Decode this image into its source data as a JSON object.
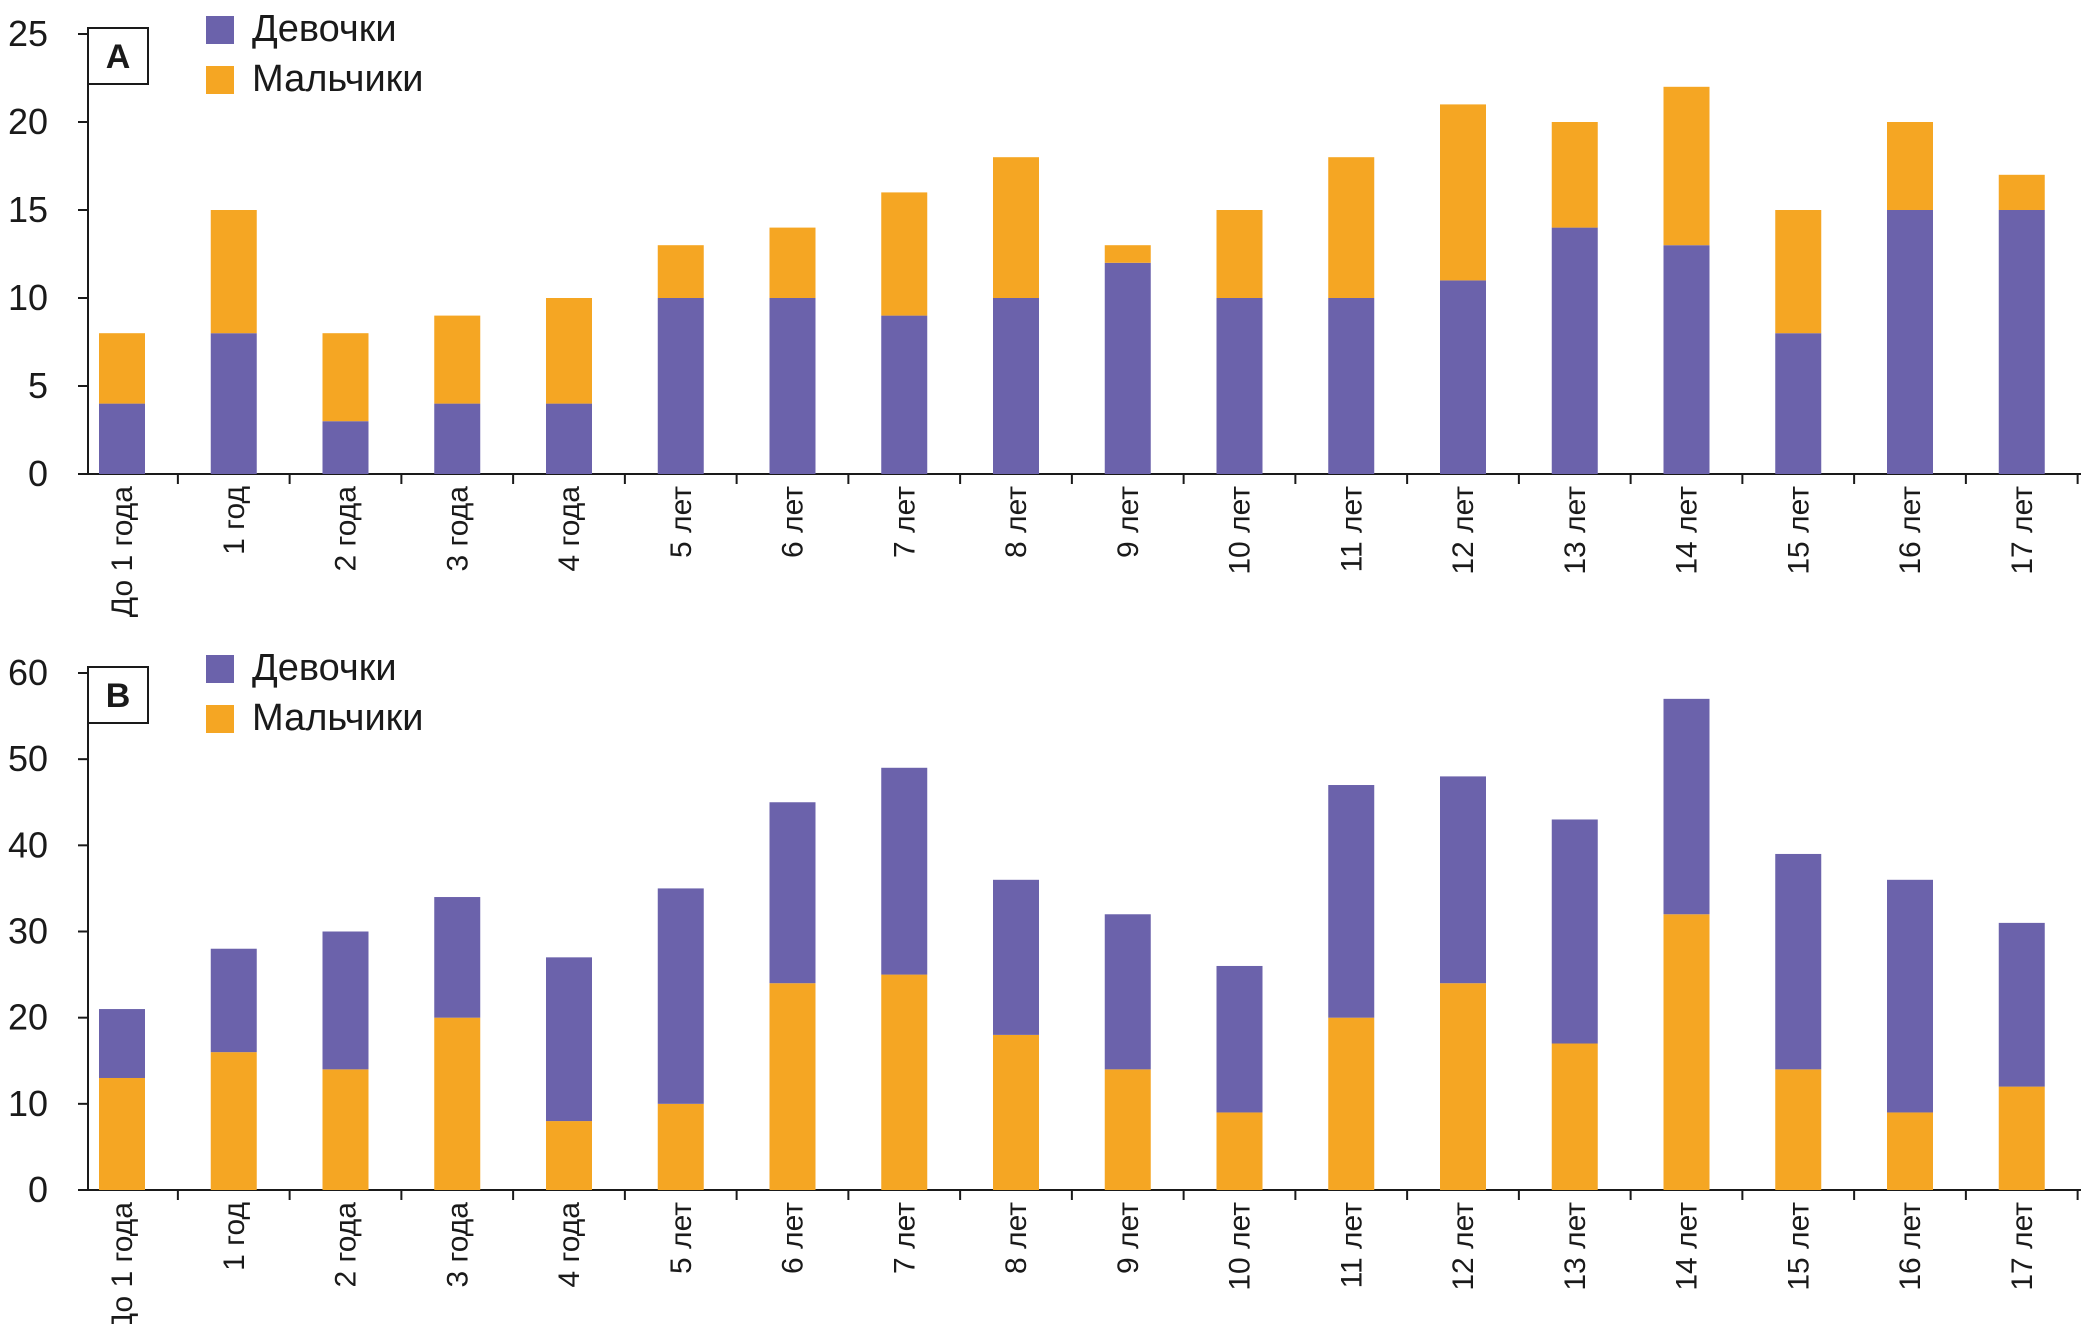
{
  "colors": {
    "girls": "#6b62ab",
    "boys": "#f5a623",
    "axis": "#1a1a1a"
  },
  "chart_data": [
    {
      "type": "bar",
      "stacked": true,
      "panel_label": "A",
      "categories": [
        "До 1 года",
        "1 год",
        "2 года",
        "3 года",
        "4 года",
        "5 лет",
        "6 лет",
        "7 лет",
        "8 лет",
        "9 лет",
        "10 лет",
        "11 лет",
        "12 лет",
        "13 лет",
        "14 лет",
        "15 лет",
        "16 лет",
        "17 лет"
      ],
      "series": [
        {
          "name": "Девочки",
          "color": "#6b62ab",
          "values": [
            4,
            8,
            3,
            4,
            4,
            10,
            10,
            9,
            10,
            12,
            10,
            10,
            11,
            14,
            13,
            8,
            15,
            15
          ]
        },
        {
          "name": "Мальчики",
          "color": "#f5a623",
          "values": [
            4,
            7,
            5,
            5,
            6,
            3,
            4,
            7,
            8,
            1,
            5,
            8,
            10,
            6,
            9,
            7,
            5,
            2
          ]
        }
      ],
      "stack_order": [
        "Девочки",
        "Мальчики"
      ],
      "legend": [
        "Девочки",
        "Мальчики"
      ],
      "yticks": [
        0,
        5,
        10,
        15,
        20,
        25
      ],
      "ylim": [
        0,
        25
      ],
      "grid": false,
      "legend_position": "top-left"
    },
    {
      "type": "bar",
      "stacked": true,
      "panel_label": "B",
      "categories": [
        "До 1 года",
        "1 год",
        "2 года",
        "3 года",
        "4 года",
        "5 лет",
        "6 лет",
        "7 лет",
        "8 лет",
        "9 лет",
        "10 лет",
        "11 лет",
        "12 лет",
        "13 лет",
        "14 лет",
        "15 лет",
        "16 лет",
        "17 лет"
      ],
      "series": [
        {
          "name": "Мальчики",
          "color": "#f5a623",
          "values": [
            13,
            16,
            14,
            20,
            8,
            10,
            24,
            25,
            18,
            14,
            9,
            20,
            24,
            17,
            32,
            14,
            9,
            12
          ]
        },
        {
          "name": "Девочки",
          "color": "#6b62ab",
          "values": [
            8,
            12,
            16,
            14,
            19,
            25,
            21,
            24,
            18,
            18,
            17,
            27,
            24,
            26,
            25,
            25,
            27,
            19
          ]
        }
      ],
      "stack_order": [
        "Мальчики",
        "Девочки"
      ],
      "legend": [
        "Девочки",
        "Мальчики"
      ],
      "yticks": [
        0,
        10,
        20,
        30,
        40,
        50,
        60
      ],
      "ylim": [
        0,
        60
      ],
      "grid": false,
      "legend_position": "top-left"
    }
  ]
}
